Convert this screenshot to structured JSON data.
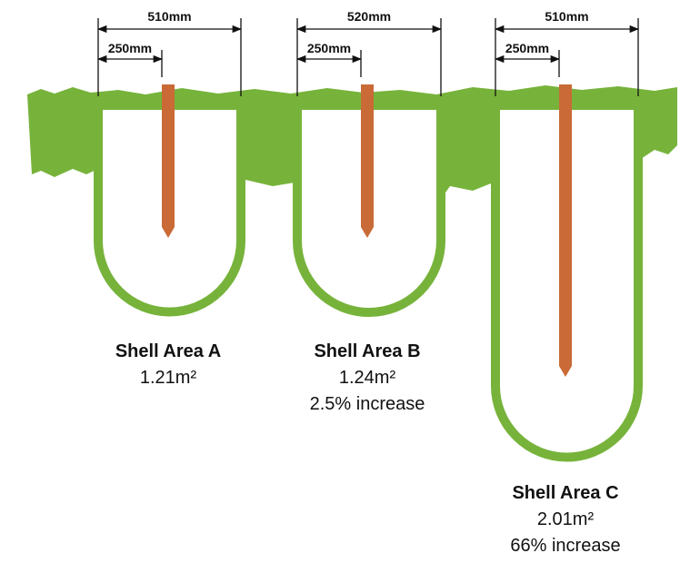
{
  "shells": [
    {
      "width_label": "510mm",
      "stake_label": "250mm",
      "title": "Shell Area A",
      "area": "1.21m²"
    },
    {
      "width_label": "520mm",
      "stake_label": "250mm",
      "title": "Shell Area B",
      "area": "1.24m²",
      "increase": "2.5% increase"
    },
    {
      "width_label": "510mm",
      "stake_label": "250mm",
      "title": "Shell Area C",
      "area": "2.01m²",
      "increase": "66% increase"
    }
  ]
}
